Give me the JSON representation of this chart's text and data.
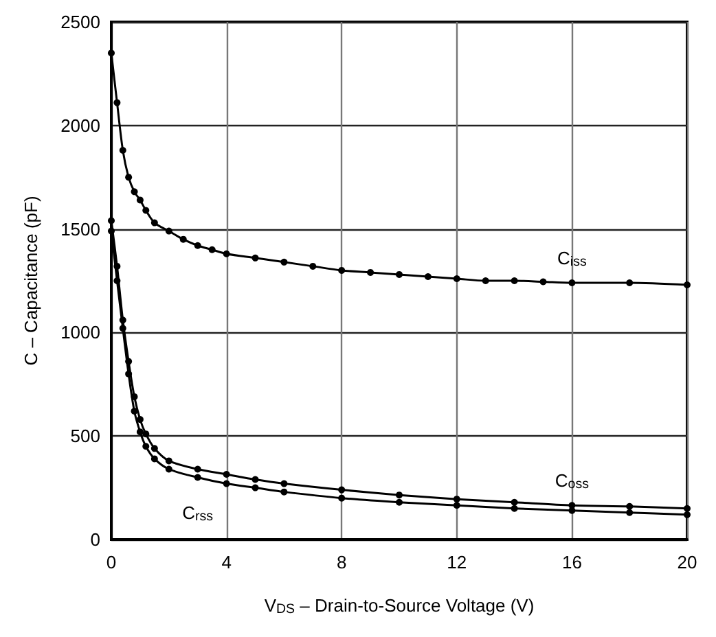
{
  "chart_data": {
    "type": "line",
    "xlabel": "V$_{DS}$ – Drain-to-Source Voltage (V)",
    "ylabel": "C – Capacitance (pF)",
    "xlim": [
      0,
      20
    ],
    "xticks": [
      0,
      4,
      8,
      12,
      16,
      20
    ],
    "ylim": [
      0,
      2500
    ],
    "yticks": [
      0,
      500,
      1000,
      1500,
      2000,
      2500
    ],
    "grid": true,
    "legend": false,
    "marker": "circle",
    "line_style": "solid",
    "series": [
      {
        "name": "C$_{iss}$",
        "color": "#000000",
        "x": [
          0,
          0.2,
          0.4,
          0.6,
          0.8,
          1,
          1.2,
          1.5,
          2,
          2.5,
          3,
          3.5,
          4,
          5,
          6,
          7,
          8,
          9,
          10,
          11,
          12,
          13,
          14,
          15,
          16,
          18,
          20
        ],
        "values": [
          2350,
          2110,
          1880,
          1750,
          1680,
          1640,
          1590,
          1530,
          1490,
          1450,
          1420,
          1400,
          1380,
          1360,
          1340,
          1320,
          1300,
          1290,
          1280,
          1270,
          1260,
          1250,
          1250,
          1245,
          1240,
          1240,
          1230
        ]
      },
      {
        "name": "C$_{oss}$",
        "color": "#000000",
        "x": [
          0,
          0.2,
          0.4,
          0.6,
          0.8,
          1,
          1.2,
          1.5,
          2,
          3,
          4,
          5,
          6,
          8,
          10,
          12,
          14,
          16,
          18,
          20
        ],
        "values": [
          1540,
          1320,
          1060,
          860,
          690,
          580,
          510,
          440,
          380,
          340,
          315,
          290,
          270,
          240,
          215,
          195,
          180,
          165,
          160,
          150
        ]
      },
      {
        "name": "C$_{rss}$",
        "color": "#000000",
        "x": [
          0,
          0.2,
          0.4,
          0.6,
          0.8,
          1,
          1.2,
          1.5,
          2,
          3,
          4,
          5,
          6,
          8,
          10,
          12,
          14,
          16,
          18,
          20
        ],
        "values": [
          1490,
          1250,
          1020,
          800,
          620,
          520,
          450,
          390,
          340,
          300,
          270,
          250,
          230,
          200,
          180,
          165,
          150,
          140,
          130,
          120
        ]
      }
    ]
  }
}
